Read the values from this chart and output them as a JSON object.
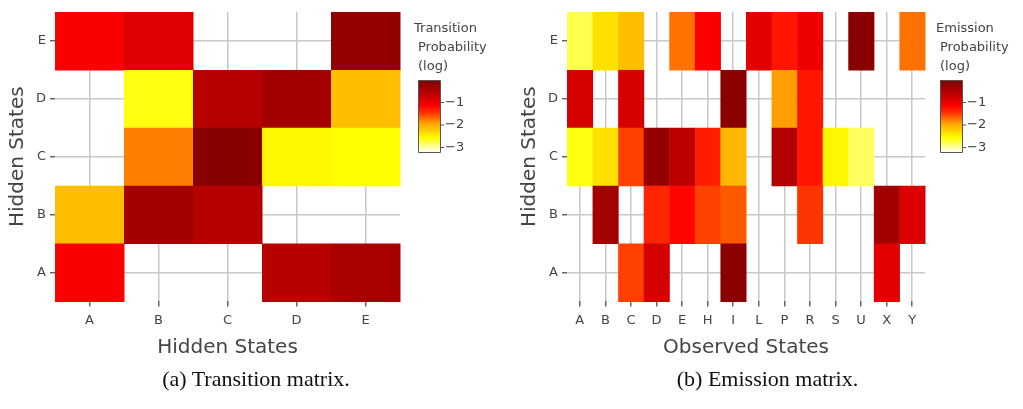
{
  "chart_data": [
    {
      "type": "heatmap",
      "xlabel": "Hidden States",
      "ylabel": "Hidden States",
      "clabel": "Transition Probability (log)",
      "grid": true,
      "categories": [
        "A",
        "B",
        "C",
        "D",
        "E"
      ],
      "y_categories": [
        "E",
        "D",
        "C",
        "B",
        "A"
      ],
      "cells": [
        [
          -1.1,
          -0.85,
          null,
          null,
          -0.2
        ],
        [
          null,
          -2.6,
          -0.55,
          -0.35,
          -2.1
        ],
        [
          null,
          -1.75,
          -0.1,
          -2.5,
          -2.55
        ],
        [
          -2.1,
          -0.35,
          -0.55,
          null,
          null
        ],
        [
          -1.1,
          null,
          null,
          -0.55,
          -0.4
        ]
      ],
      "clim": [
        -3.2,
        0
      ],
      "cticks": [
        {
          "value": -1,
          "label": "−1"
        },
        {
          "value": -2,
          "label": "−2"
        },
        {
          "value": -3,
          "label": "−3"
        }
      ],
      "annotations": [
        "(a) Transition matrix."
      ]
    },
    {
      "type": "heatmap",
      "xlabel": "Observed States",
      "ylabel": "Hidden States",
      "clabel": "Emission Probability (log)",
      "grid": true,
      "categories": [
        "A",
        "B",
        "C",
        "D",
        "E",
        "H",
        "I",
        "L",
        "P",
        "R",
        "S",
        "U",
        "X",
        "Y"
      ],
      "y_categories": [
        "E",
        "D",
        "C",
        "B",
        "A"
      ],
      "cells": [
        [
          -2.75,
          -2.35,
          -2.1,
          null,
          -1.7,
          -1.1,
          null,
          -0.9,
          -1.25,
          -1.0,
          null,
          -0.1,
          null,
          -1.7
        ],
        [
          -0.8,
          null,
          -0.8,
          null,
          null,
          null,
          -0.1,
          null,
          -1.9,
          -1.25,
          null,
          null,
          null,
          null
        ],
        [
          -2.6,
          -2.35,
          -1.5,
          -0.2,
          -0.6,
          -1.3,
          -2.05,
          null,
          -0.5,
          -1.25,
          -2.5,
          -2.8,
          null,
          null
        ],
        [
          null,
          -0.35,
          null,
          -1.35,
          -1.15,
          -1.5,
          -1.6,
          null,
          null,
          -1.45,
          null,
          null,
          -0.35,
          -0.85
        ],
        [
          null,
          null,
          -1.5,
          -0.8,
          null,
          null,
          -0.1,
          null,
          null,
          null,
          null,
          null,
          -0.9,
          null
        ]
      ],
      "clim": [
        -3.2,
        0
      ],
      "cticks": [
        {
          "value": -1,
          "label": "−1"
        },
        {
          "value": -2,
          "label": "−2"
        },
        {
          "value": -3,
          "label": "−3"
        }
      ],
      "annotations": [
        "(b) Emission matrix."
      ]
    }
  ]
}
